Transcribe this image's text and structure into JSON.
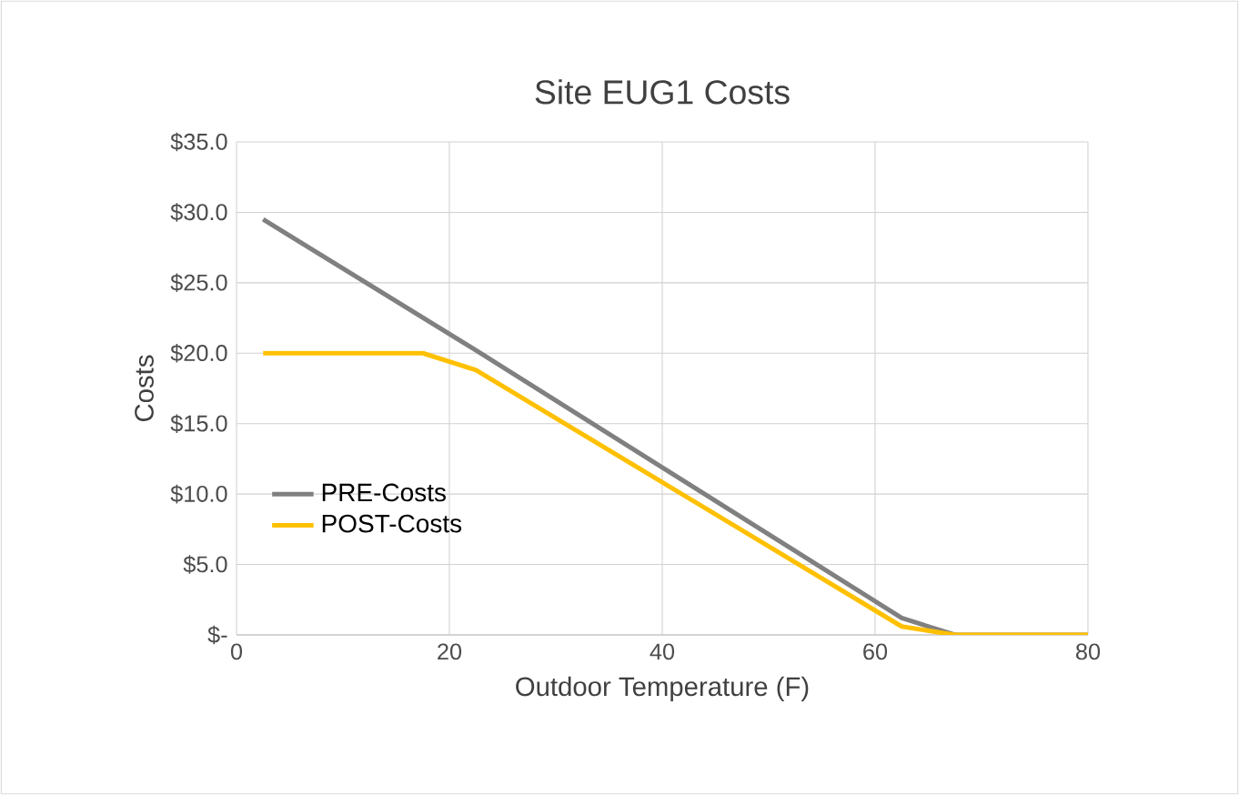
{
  "chart_data": {
    "type": "line",
    "title": "Site EUG1  Costs",
    "xlabel": "Outdoor Temperature (F)",
    "ylabel": "Costs",
    "series": [
      {
        "name": "PRE-Costs",
        "color": "#808080",
        "x": [
          2.5,
          22.5,
          62.5,
          67.5,
          80
        ],
        "values": [
          29.5,
          20.2,
          1.2,
          0,
          0
        ]
      },
      {
        "name": "POST-Costs",
        "color": "#ffc000",
        "x": [
          2.5,
          17.5,
          22.5,
          62.5,
          67.5,
          80
        ],
        "values": [
          20,
          20,
          18.8,
          0.6,
          0,
          0
        ]
      }
    ],
    "xlim": [
      0,
      80
    ],
    "xticks": [
      0,
      20,
      40,
      60,
      80
    ],
    "ylim": [
      0,
      35
    ],
    "yticks": [
      {
        "value": 0,
        "label": "$-"
      },
      {
        "value": 5,
        "label": "$5.0"
      },
      {
        "value": 10,
        "label": "$10.0"
      },
      {
        "value": 15,
        "label": "$15.0"
      },
      {
        "value": 20,
        "label": "$20.0"
      },
      {
        "value": 25,
        "label": "$25.0"
      },
      {
        "value": 30,
        "label": "$30.0"
      },
      {
        "value": 35,
        "label": "$35.0"
      }
    ],
    "grid": true,
    "legend": "left",
    "marker": "none",
    "line_style": "solid"
  }
}
